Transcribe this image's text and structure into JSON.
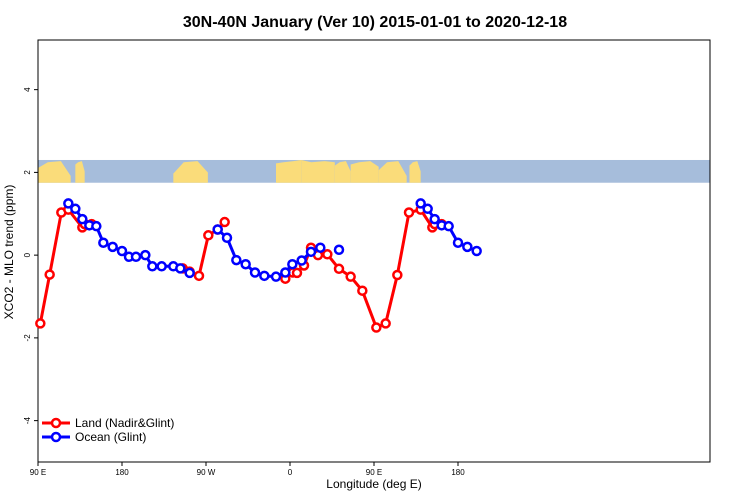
{
  "chart_data": {
    "type": "line",
    "title": "30N-40N January (Ver 10)   2015-01-01 to 2020-12-18",
    "xlabel": "Longitude (deg E)",
    "ylabel": "XCO2 - MLO trend (ppm)",
    "xlim": [
      90,
      450
    ],
    "ylim": [
      -5,
      5.2
    ],
    "x_ticks": [
      {
        "value": 90,
        "label": "90 E"
      },
      {
        "value": 180,
        "label": "180"
      },
      {
        "value": 270,
        "label": "90 W"
      },
      {
        "value": 360,
        "label": "0"
      },
      {
        "value": 450,
        "label": "90 E"
      },
      {
        "value": 540,
        "label": "180"
      }
    ],
    "y_ticks": [
      {
        "value": -4,
        "label": "-4"
      },
      {
        "value": -2,
        "label": "-2"
      },
      {
        "value": 0,
        "label": "0"
      },
      {
        "value": 2,
        "label": "2"
      },
      {
        "value": 4,
        "label": "4"
      }
    ],
    "legend_position": "bottom-left",
    "map_band": {
      "lat_range": "30N-40N",
      "y_range": [
        1.75,
        2.3
      ],
      "ocean_color": "#a6bddb",
      "land_color": "#fadc7a"
    },
    "series": [
      {
        "name": "Land (Nadir&Glint)",
        "color": "#ff0000",
        "segments": [
          {
            "x": [
              92.5,
              102.5,
              115,
              122.5,
              137.5,
              140,
              147.5
            ],
            "y": [
              -1.65,
              -0.47,
              1.03,
              1.1,
              0.67,
              0.75,
              0.75
            ]
          },
          {
            "x": [
              245,
              252.5,
              262.5,
              272.5,
              282.5,
              290
            ],
            "y": [
              -0.32,
              -0.4,
              -0.5,
              0.48,
              0.62,
              0.8
            ]
          },
          {
            "x": [
              355,
              363,
              367.5,
              375,
              382.5,
              390,
              400,
              412.5,
              425,
              437.5,
              452.5,
              462.5,
              475,
              487.5,
              500,
              512.5,
              515,
              522.5
            ],
            "y": [
              -0.57,
              -0.42,
              -0.43,
              -0.25,
              0.18,
              0.0,
              0.02,
              -0.33,
              -0.52,
              -0.86,
              -1.75,
              -1.65,
              -0.48,
              1.03,
              1.1,
              0.67,
              0.75,
              0.75
            ]
          }
        ]
      },
      {
        "name": "Ocean (Glint)",
        "color": "#0000ff",
        "segments": [
          {
            "x": [
              122.5,
              130,
              137.5,
              145,
              152.5,
              160,
              170,
              180,
              187.5,
              195,
              205,
              212.5,
              222.5,
              235,
              242.5,
              252.5
            ],
            "y": [
              1.25,
              1.12,
              0.87,
              0.72,
              0.7,
              0.3,
              0.2,
              0.1,
              -0.04,
              -0.04,
              0.0,
              -0.27,
              -0.27,
              -0.27,
              -0.32,
              -0.43
            ]
          },
          {
            "x": [
              282.5,
              292.5,
              302.5,
              312.5,
              322.5,
              332.5,
              345,
              355,
              362.5,
              372.5,
              382.5,
              392.5
            ],
            "y": [
              0.62,
              0.42,
              -0.12,
              -0.22,
              -0.42,
              -0.5,
              -0.52,
              -0.42,
              -0.22,
              -0.13,
              0.08,
              0.18
            ]
          },
          {
            "x": [
              412.5
            ],
            "y": [
              0.13
            ]
          },
          {
            "x": [
              500,
              507.5,
              515,
              522.5,
              530,
              540,
              550,
              560
            ],
            "y": [
              1.25,
              1.12,
              0.87,
              0.72,
              0.7,
              0.3,
              0.2,
              0.1
            ]
          }
        ]
      }
    ]
  }
}
